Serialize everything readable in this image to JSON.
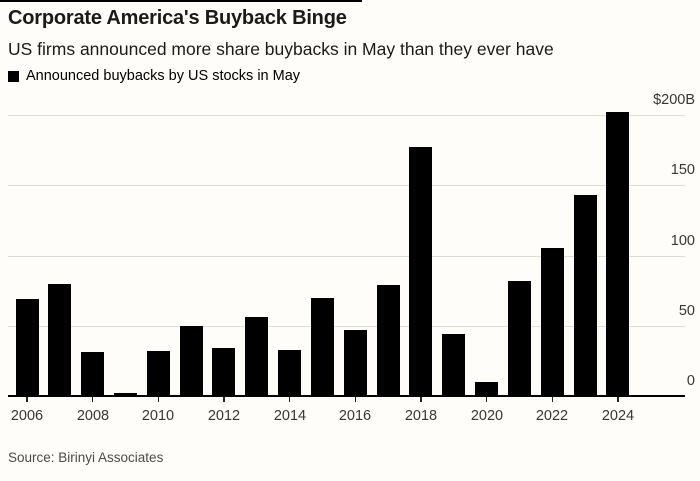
{
  "header": {
    "title": "Corporate America's Buyback Binge",
    "subtitle": "US firms announced more share buybacks in May than they ever have"
  },
  "legend": {
    "label": "Announced buybacks by US stocks in May",
    "swatch_color": "#000000"
  },
  "source": "Source: Birinyi Associates",
  "colors": {
    "bar": "#000000",
    "gridline": "#dcdcdc",
    "axis_line": "#000000",
    "background": "#fffdfa",
    "title_text": "#1a1a1a",
    "tick_text": "#363636",
    "source_text": "#4a4a4a"
  },
  "chart_data": {
    "type": "bar",
    "title": "Corporate America's Buyback Binge",
    "subtitle": "US firms announced more share buybacks in May than they ever have",
    "legend_entries": [
      "Announced buybacks by US stocks in May"
    ],
    "legend_position": "top-left",
    "categories": [
      2006,
      2007,
      2008,
      2009,
      2010,
      2011,
      2012,
      2013,
      2014,
      2015,
      2016,
      2017,
      2018,
      2019,
      2020,
      2021,
      2022,
      2023,
      2024
    ],
    "values": [
      69,
      80,
      31,
      2,
      32,
      50,
      34,
      56,
      33,
      70,
      47,
      79,
      177,
      44,
      10,
      82,
      105,
      143,
      202
    ],
    "unit": "billions USD",
    "xlabel": "",
    "ylabel": "",
    "ylim": [
      0,
      200
    ],
    "ytick_values": [
      200,
      150,
      100,
      50,
      0
    ],
    "ytick_labels": [
      "$200B",
      "150",
      "100",
      "50",
      "0"
    ],
    "yaxis_side": "right",
    "xtick_labels": [
      "2006",
      "2008",
      "2010",
      "2012",
      "2014",
      "2016",
      "2018",
      "2020",
      "2022",
      "2024"
    ],
    "grid": true,
    "bar_color": "#000000",
    "source": "Source: Birinyi Associates"
  }
}
